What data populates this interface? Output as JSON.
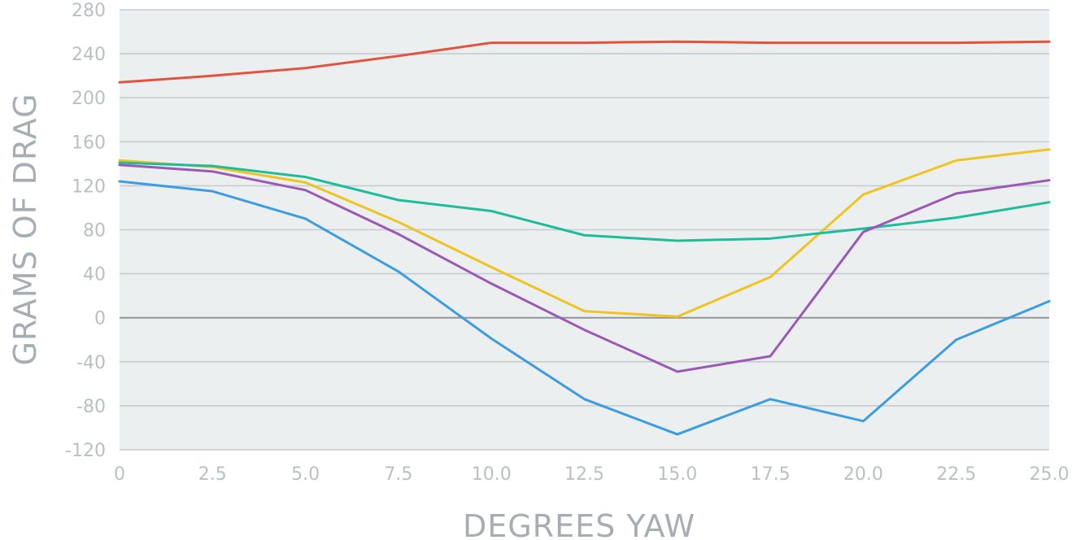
{
  "chart_data": {
    "type": "line",
    "title": "",
    "xlabel": "DEGREES YAW",
    "ylabel": "GRAMS OF DRAG",
    "xlim": [
      0,
      25
    ],
    "ylim": [
      -120,
      280
    ],
    "x": [
      0,
      2.5,
      5.0,
      7.5,
      10.0,
      12.5,
      15.0,
      17.5,
      20.0,
      22.5,
      25.0
    ],
    "x_tick_labels": [
      "0",
      "2.5",
      "5.0",
      "7.5",
      "10.0",
      "12.5",
      "15.0",
      "17.5",
      "20.0",
      "22.5",
      "25.0"
    ],
    "y_ticks": [
      -120,
      -80,
      -40,
      0,
      40,
      80,
      120,
      160,
      200,
      240,
      280
    ],
    "y_tick_labels": [
      "-120",
      "-80",
      "-40",
      "0",
      "40",
      "80",
      "120",
      "160",
      "200",
      "240",
      "280"
    ],
    "grid": true,
    "legend": "none",
    "colors": {
      "background": "#ffffff",
      "plot_area": "#eceff0",
      "grid": "#c6ccd0",
      "zero_line": "#8e969b"
    },
    "series": [
      {
        "color": "#e4513c",
        "values": [
          214,
          220,
          227,
          238,
          250,
          250,
          251,
          250,
          250,
          250,
          251
        ]
      },
      {
        "color": "#f0c420",
        "values": [
          143,
          137,
          123,
          87,
          46,
          6,
          1,
          37,
          112,
          143,
          153
        ]
      },
      {
        "color": "#1dbc9a",
        "values": [
          141,
          138,
          128,
          107,
          97,
          75,
          70,
          72,
          81,
          91,
          105
        ]
      },
      {
        "color": "#9b59b6",
        "values": [
          139,
          133,
          116,
          76,
          31,
          -11,
          -49,
          -35,
          78,
          113,
          125
        ]
      },
      {
        "color": "#3c9de0",
        "values": [
          124,
          115,
          90,
          42,
          -19,
          -74,
          -106,
          -74,
          -94,
          -20,
          15
        ]
      }
    ]
  }
}
